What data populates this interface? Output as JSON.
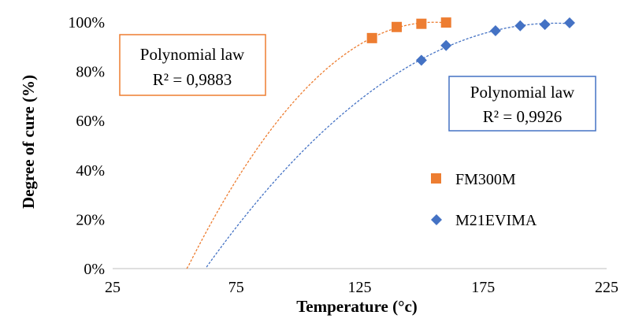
{
  "chart_data": {
    "type": "scatter",
    "xlabel": "Temperature (°c)",
    "ylabel": "Degree of cure (%)",
    "xlim": [
      25,
      225
    ],
    "ylim": [
      0,
      1
    ],
    "x_ticks": [
      "25",
      "75",
      "125",
      "175",
      "225"
    ],
    "y_ticks": [
      "0%",
      "20%",
      "40%",
      "60%",
      "80%",
      "100%"
    ],
    "grid": false,
    "legend_position": "right",
    "series": [
      {
        "name": "FM300M",
        "marker": "square",
        "color": "#ED7D31",
        "points": [
          [
            130,
            0.935
          ],
          [
            140,
            0.98
          ],
          [
            150,
            0.993
          ],
          [
            160,
            0.998
          ]
        ],
        "trendline": {
          "type": "polynomial",
          "style": "dashed",
          "x_range": [
            55,
            160
          ]
        },
        "annotation": {
          "line1": "Polynomial law",
          "line2": "R² = 0,9883"
        }
      },
      {
        "name": "M21EVIMA",
        "marker": "diamond",
        "color": "#4472C4",
        "points": [
          [
            150,
            0.845
          ],
          [
            160,
            0.905
          ],
          [
            180,
            0.965
          ],
          [
            190,
            0.985
          ],
          [
            200,
            0.99
          ],
          [
            210,
            0.997
          ]
        ],
        "trendline": {
          "type": "polynomial",
          "style": "dashed",
          "x_range": [
            63,
            210
          ]
        },
        "annotation": {
          "line1": "Polynomial law",
          "line2": "R² = 0,9926"
        }
      }
    ]
  }
}
